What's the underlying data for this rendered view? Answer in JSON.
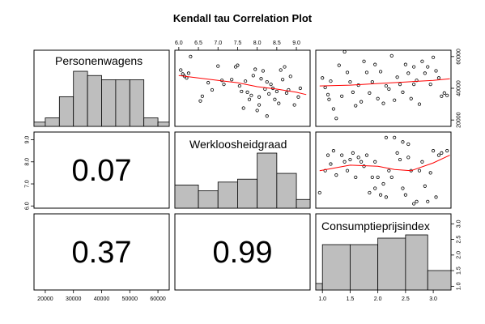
{
  "chart_data": {
    "type": "scatter-matrix",
    "title": "Kendall tau Correlation Plot",
    "variables": [
      "Personenwagens",
      "Werkloosheidgraad",
      "Consumptieprijsindex"
    ],
    "axes": {
      "Personenwagens": {
        "ticks": [
          20000,
          30000,
          40000,
          50000,
          60000
        ],
        "tick_labels": [
          "20000",
          "30000",
          "40000",
          "50000",
          "60000"
        ],
        "range": [
          16000,
          64000
        ]
      },
      "Werkloosheidgraad": {
        "ticks": [
          6.0,
          6.5,
          7.0,
          7.5,
          8.0,
          8.5,
          9.0
        ],
        "tick_labels": [
          "6.0",
          "6.5",
          "7.0",
          "7.5",
          "8.0",
          "8.5",
          "9.0"
        ],
        "left_tick_labels": [
          "6.0",
          "7.0",
          "8.0",
          "9.0"
        ],
        "range": [
          5.9,
          9.35
        ]
      },
      "Consumptieprijsindex": {
        "ticks": [
          1.0,
          1.5,
          2.0,
          2.5,
          3.0
        ],
        "tick_labels": [
          "1.0",
          "1.5",
          "2.0",
          "2.5",
          "3.0"
        ],
        "range": [
          0.88,
          3.32
        ]
      }
    },
    "correlations": [
      {
        "row": 2,
        "col": 1,
        "value": "0.07"
      },
      {
        "row": 3,
        "col": 1,
        "value": "0.37"
      },
      {
        "row": 3,
        "col": 2,
        "value": "0.99"
      }
    ],
    "histograms": [
      {
        "variable": "Personenwagens",
        "edges": [
          16000,
          20000,
          25000,
          30000,
          35000,
          40000,
          45000,
          50000,
          55000,
          60000,
          64000
        ],
        "counts": [
          1,
          2,
          7,
          13,
          12,
          11,
          11,
          11,
          2,
          1
        ]
      },
      {
        "variable": "Werkloosheidgraad",
        "edges": [
          5.9,
          6.5,
          7.0,
          7.5,
          8.0,
          8.5,
          9.0,
          9.35
        ],
        "counts": [
          8,
          6,
          9,
          10,
          19,
          12,
          3
        ]
      },
      {
        "variable": "Consumptieprijsindex",
        "edges": [
          0.88,
          1.0,
          1.5,
          2.0,
          2.5,
          2.9,
          3.32
        ],
        "counts": [
          2,
          14,
          14,
          16,
          17,
          6
        ]
      }
    ],
    "scatter": [
      {
        "x_var": "Werkloosheidgraad",
        "y_var": "Personenwagens",
        "points": [
          [
            6.05,
            51500
          ],
          [
            6.1,
            49000
          ],
          [
            6.15,
            47500
          ],
          [
            6.2,
            46500
          ],
          [
            6.25,
            49500
          ],
          [
            6.3,
            60000
          ],
          [
            6.55,
            32000
          ],
          [
            6.6,
            35000
          ],
          [
            6.75,
            43500
          ],
          [
            6.85,
            39000
          ],
          [
            7.0,
            54000
          ],
          [
            7.1,
            45000
          ],
          [
            7.15,
            42500
          ],
          [
            7.35,
            45500
          ],
          [
            7.45,
            53500
          ],
          [
            7.5,
            54500
          ],
          [
            7.55,
            41500
          ],
          [
            7.6,
            38000
          ],
          [
            7.65,
            27500
          ],
          [
            7.7,
            44500
          ],
          [
            7.75,
            37500
          ],
          [
            7.8,
            33000
          ],
          [
            7.85,
            35500
          ],
          [
            7.9,
            48000
          ],
          [
            8.0,
            26000
          ],
          [
            8.05,
            34500
          ],
          [
            8.1,
            46000
          ],
          [
            8.15,
            51000
          ],
          [
            8.2,
            39500
          ],
          [
            8.25,
            22500
          ],
          [
            8.3,
            36500
          ],
          [
            8.35,
            42500
          ],
          [
            8.4,
            40000
          ],
          [
            8.45,
            33000
          ],
          [
            8.5,
            38000
          ],
          [
            8.55,
            30500
          ],
          [
            8.6,
            51500
          ],
          [
            8.65,
            45500
          ],
          [
            8.7,
            53500
          ],
          [
            8.75,
            37000
          ],
          [
            8.8,
            39000
          ],
          [
            8.85,
            47500
          ],
          [
            8.95,
            29500
          ],
          [
            9.05,
            34500
          ],
          [
            9.1,
            40000
          ],
          [
            8.05,
            29500
          ],
          [
            8.25,
            44000
          ],
          [
            7.95,
            52000
          ]
        ],
        "smooth": [
          [
            6.0,
            48000
          ],
          [
            6.5,
            46500
          ],
          [
            7.0,
            45000
          ],
          [
            7.5,
            43500
          ],
          [
            8.0,
            41000
          ],
          [
            8.5,
            39500
          ],
          [
            9.0,
            37500
          ],
          [
            9.25,
            36000
          ]
        ]
      },
      {
        "x_var": "Consumptieprijsindex",
        "y_var": "Personenwagens",
        "points": [
          [
            1.0,
            46500
          ],
          [
            1.05,
            40500
          ],
          [
            1.1,
            36000
          ],
          [
            1.12,
            33000
          ],
          [
            1.15,
            44500
          ],
          [
            1.2,
            27000
          ],
          [
            1.25,
            21000
          ],
          [
            1.3,
            54500
          ],
          [
            1.35,
            35000
          ],
          [
            1.4,
            63000
          ],
          [
            1.45,
            50000
          ],
          [
            1.5,
            44000
          ],
          [
            1.55,
            37500
          ],
          [
            1.6,
            29000
          ],
          [
            1.65,
            42000
          ],
          [
            1.7,
            31500
          ],
          [
            1.75,
            57000
          ],
          [
            1.8,
            50000
          ],
          [
            1.85,
            37000
          ],
          [
            1.9,
            44000
          ],
          [
            1.95,
            55000
          ],
          [
            2.0,
            33500
          ],
          [
            2.05,
            50500
          ],
          [
            2.1,
            30500
          ],
          [
            2.15,
            41500
          ],
          [
            2.2,
            39500
          ],
          [
            2.25,
            60500
          ],
          [
            2.3,
            32500
          ],
          [
            2.35,
            47000
          ],
          [
            2.4,
            42500
          ],
          [
            2.45,
            37500
          ],
          [
            2.5,
            55000
          ],
          [
            2.55,
            49500
          ],
          [
            2.6,
            33500
          ],
          [
            2.65,
            42500
          ],
          [
            2.7,
            45000
          ],
          [
            2.75,
            30000
          ],
          [
            2.8,
            57000
          ],
          [
            2.85,
            49500
          ],
          [
            2.9,
            53500
          ],
          [
            2.95,
            42500
          ],
          [
            3.0,
            59500
          ],
          [
            3.05,
            51000
          ],
          [
            3.1,
            46500
          ],
          [
            3.15,
            35000
          ],
          [
            3.2,
            37000
          ],
          [
            3.25,
            35500
          ],
          [
            2.65,
            53500
          ]
        ],
        "smooth": [
          [
            0.95,
            41500
          ],
          [
            1.5,
            42000
          ],
          [
            2.0,
            43000
          ],
          [
            2.5,
            44000
          ],
          [
            3.0,
            45000
          ],
          [
            3.3,
            46000
          ]
        ]
      },
      {
        "x_var": "Consumptieprijsindex",
        "y_var": "Werkloosheidgraad",
        "points": [
          [
            0.95,
            6.6
          ],
          [
            1.05,
            7.6
          ],
          [
            1.1,
            8.3
          ],
          [
            1.15,
            7.9
          ],
          [
            1.2,
            8.5
          ],
          [
            1.25,
            7.4
          ],
          [
            1.35,
            8.3
          ],
          [
            1.4,
            8.0
          ],
          [
            1.45,
            7.6
          ],
          [
            1.5,
            8.1
          ],
          [
            1.55,
            8.4
          ],
          [
            1.6,
            7.3
          ],
          [
            1.65,
            8.2
          ],
          [
            1.7,
            8.0
          ],
          [
            1.75,
            7.8
          ],
          [
            1.8,
            8.3
          ],
          [
            1.85,
            6.6
          ],
          [
            1.9,
            7.3
          ],
          [
            1.95,
            8.0
          ],
          [
            2.0,
            7.3
          ],
          [
            2.05,
            6.5
          ],
          [
            2.1,
            7.0
          ],
          [
            2.15,
            6.4
          ],
          [
            2.2,
            7.6
          ],
          [
            2.25,
            7.3
          ],
          [
            2.3,
            9.1
          ],
          [
            2.35,
            8.4
          ],
          [
            2.4,
            8.1
          ],
          [
            2.45,
            6.8
          ],
          [
            2.5,
            6.5
          ],
          [
            2.55,
            8.2
          ],
          [
            2.6,
            7.6
          ],
          [
            2.65,
            6.1
          ],
          [
            2.7,
            6.2
          ],
          [
            2.75,
            7.6
          ],
          [
            2.8,
            8.0
          ],
          [
            2.85,
            6.9
          ],
          [
            2.9,
            6.2
          ],
          [
            2.95,
            7.5
          ],
          [
            3.0,
            8.5
          ],
          [
            3.05,
            6.4
          ],
          [
            3.1,
            8.3
          ],
          [
            3.15,
            8.4
          ],
          [
            3.25,
            8.5
          ],
          [
            2.45,
            8.9
          ],
          [
            2.55,
            8.8
          ],
          [
            1.95,
            6.8
          ],
          [
            2.15,
            9.1
          ]
        ],
        "smooth": [
          [
            0.95,
            7.6
          ],
          [
            1.5,
            7.85
          ],
          [
            2.0,
            7.8
          ],
          [
            2.3,
            7.65
          ],
          [
            2.6,
            7.6
          ],
          [
            3.0,
            7.95
          ],
          [
            3.3,
            8.3
          ]
        ]
      }
    ]
  },
  "colors": {
    "hist_fill": "#bebebe",
    "smooth_line": "#ff0000",
    "frame": "#000000",
    "point": "#000000"
  }
}
